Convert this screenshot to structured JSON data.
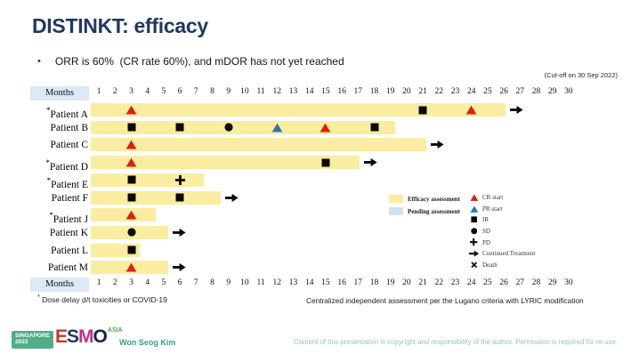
{
  "slide": {
    "title": "DISTINKT: efficacy",
    "bullet_glyph": "•",
    "bullet": "ORR is 60%  (CR rate 60%), and mDOR has not yet reached",
    "cutoff_note": "(Cut-off on 30 Sep 2022)",
    "footnote_left_marker": "*",
    "footnote_left": " Dose delay d/t toxicities or COVID-19",
    "footnote_right": "Centralized independent assessment per the Lugano criteria with LYRIC modification",
    "presenter": "Won Seog Kim",
    "copyright": "Content of this presentation is copyright and responsibility of the author. Permission is required for re-use.",
    "logo": {
      "block_line1": "SINGAPORE",
      "block_line2": "2022",
      "letters": [
        "E",
        "S",
        "M",
        "O"
      ],
      "letter_colors": [
        "#C8362B",
        "#1F3864",
        "#C22E86",
        "#16233F"
      ],
      "suffix": "ASIA"
    }
  },
  "chart_data": {
    "type": "bar",
    "subtype": "swimmer-plot",
    "axis_label": "Months",
    "x_ticks": [
      1,
      2,
      3,
      4,
      5,
      6,
      7,
      8,
      9,
      10,
      11,
      12,
      13,
      14,
      15,
      16,
      17,
      18,
      19,
      20,
      21,
      22,
      23,
      24,
      25,
      26,
      27,
      28,
      29,
      30
    ],
    "xlim": [
      0.5,
      30.5
    ],
    "bar_start_month": 0.5,
    "colors": {
      "bar": "#FAEDA0",
      "pending": "#CFE2F4",
      "header_bg": "#DCE9F7",
      "cr": "#DE1F14",
      "pr": "#2E74B5",
      "marker_black": "#0a0a0a"
    },
    "patients": [
      {
        "name": "Patient A",
        "dose_delay_flag": true,
        "bar_end": 26.1,
        "continued": true,
        "markers": [
          {
            "month": 3,
            "type": "cr"
          },
          {
            "month": 21,
            "type": "ir"
          },
          {
            "month": 24,
            "type": "cr"
          }
        ]
      },
      {
        "name": "Patient B",
        "dose_delay_flag": false,
        "bar_end": 19.3,
        "continued": false,
        "markers": [
          {
            "month": 3,
            "type": "ir"
          },
          {
            "month": 6,
            "type": "ir"
          },
          {
            "month": 9,
            "type": "sd"
          },
          {
            "month": 12,
            "type": "pr"
          },
          {
            "month": 15,
            "type": "cr"
          },
          {
            "month": 18,
            "type": "ir"
          }
        ]
      },
      {
        "name": "Patient C",
        "dose_delay_flag": false,
        "bar_end": 21.2,
        "continued": true,
        "markers": [
          {
            "month": 3,
            "type": "cr"
          }
        ]
      },
      {
        "name": "Patient D",
        "dose_delay_flag": true,
        "bar_end": 17.1,
        "continued": true,
        "markers": [
          {
            "month": 3,
            "type": "cr"
          },
          {
            "month": 15,
            "type": "ir"
          }
        ]
      },
      {
        "name": "Patient E",
        "dose_delay_flag": true,
        "bar_end": 7.5,
        "continued": false,
        "markers": [
          {
            "month": 3,
            "type": "ir"
          },
          {
            "month": 6,
            "type": "pd"
          }
        ]
      },
      {
        "name": "Patient F",
        "dose_delay_flag": false,
        "bar_end": 8.5,
        "continued": true,
        "markers": [
          {
            "month": 3,
            "type": "ir"
          },
          {
            "month": 6,
            "type": "ir"
          }
        ]
      },
      {
        "name": "Patient J",
        "dose_delay_flag": true,
        "bar_end": 4.5,
        "continued": false,
        "markers": [
          {
            "month": 3,
            "type": "cr"
          }
        ]
      },
      {
        "name": "Patient K",
        "dose_delay_flag": false,
        "bar_end": 5.3,
        "continued": true,
        "markers": [
          {
            "month": 3,
            "type": "sd"
          }
        ]
      },
      {
        "name": "Patient L",
        "dose_delay_flag": false,
        "bar_end": 3.5,
        "continued": false,
        "markers": [
          {
            "month": 3,
            "type": "ir"
          }
        ]
      },
      {
        "name": "Patient M",
        "dose_delay_flag": false,
        "bar_end": 5.3,
        "continued": true,
        "markers": [
          {
            "month": 3,
            "type": "cr"
          }
        ]
      }
    ],
    "legend": {
      "assessments": [
        {
          "label": "Efficacy assessment",
          "color": "#FAEDA0"
        },
        {
          "label": "Pending assessment",
          "color": "#CFE2F4"
        }
      ],
      "markers": [
        {
          "type": "cr",
          "label": "CR start"
        },
        {
          "type": "pr",
          "label": "PR start"
        },
        {
          "type": "ir",
          "label": "IR"
        },
        {
          "type": "sd",
          "label": "SD"
        },
        {
          "type": "pd",
          "label": "PD"
        },
        {
          "type": "cont",
          "label": "Continued Treatment"
        },
        {
          "type": "death",
          "label": "Death"
        }
      ]
    }
  }
}
